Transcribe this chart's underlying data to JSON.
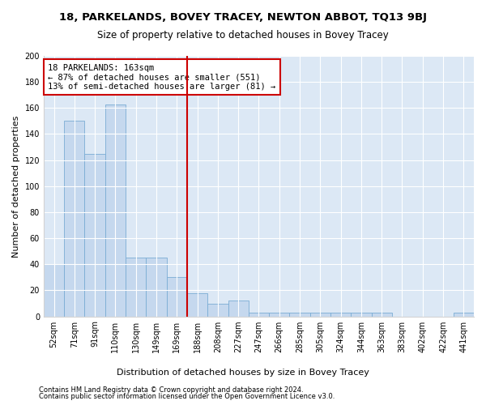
{
  "title": "18, PARKELANDS, BOVEY TRACEY, NEWTON ABBOT, TQ13 9BJ",
  "subtitle": "Size of property relative to detached houses in Bovey Tracey",
  "xlabel": "Distribution of detached houses by size in Bovey Tracey",
  "ylabel": "Number of detached properties",
  "categories": [
    "52sqm",
    "71sqm",
    "91sqm",
    "110sqm",
    "130sqm",
    "149sqm",
    "169sqm",
    "188sqm",
    "208sqm",
    "227sqm",
    "247sqm",
    "266sqm",
    "285sqm",
    "305sqm",
    "324sqm",
    "344sqm",
    "363sqm",
    "383sqm",
    "402sqm",
    "422sqm",
    "441sqm"
  ],
  "values": [
    40,
    150,
    125,
    163,
    45,
    45,
    30,
    18,
    10,
    12,
    3,
    3,
    3,
    3,
    3,
    3,
    3,
    0,
    0,
    0,
    3
  ],
  "bar_color": "#c5d8ee",
  "bar_edge_color": "#7aacd4",
  "vline_x_index": 6,
  "vline_color": "#cc0000",
  "annotation_text": "18 PARKELANDS: 163sqm\n← 87% of detached houses are smaller (551)\n13% of semi-detached houses are larger (81) →",
  "annotation_box_color": "#cc0000",
  "ylim": [
    0,
    200
  ],
  "yticks": [
    0,
    20,
    40,
    60,
    80,
    100,
    120,
    140,
    160,
    180,
    200
  ],
  "footnote1": "Contains HM Land Registry data © Crown copyright and database right 2024.",
  "footnote2": "Contains public sector information licensed under the Open Government Licence v3.0.",
  "fig_bg_color": "#ffffff",
  "plot_bg_color": "#dce8f5",
  "title_fontsize": 9.5,
  "subtitle_fontsize": 8.5,
  "tick_fontsize": 7,
  "ylabel_fontsize": 8,
  "xlabel_fontsize": 8,
  "annotation_fontsize": 7.5
}
